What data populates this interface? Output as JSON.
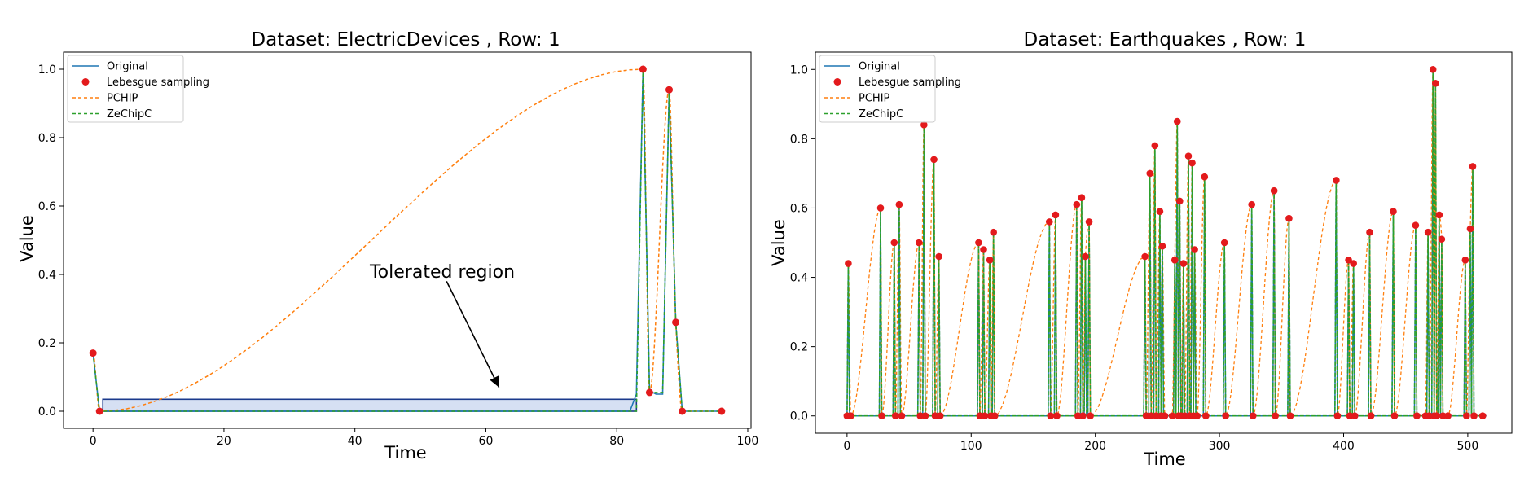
{
  "chart_data": [
    {
      "type": "line",
      "title": "Dataset: ElectricDevices , Row: 1",
      "xlabel": "Time",
      "ylabel": "Value",
      "xlim": [
        -4.5,
        100.5
      ],
      "ylim": [
        -0.05,
        1.05
      ],
      "xticks": [
        0,
        20,
        40,
        60,
        80,
        100
      ],
      "yticks": [
        0.0,
        0.2,
        0.4,
        0.6,
        0.8,
        1.0
      ],
      "xtick_labels": [
        "0",
        "20",
        "40",
        "60",
        "80",
        "100"
      ],
      "ytick_labels": [
        "0.0",
        "0.2",
        "0.4",
        "0.6",
        "0.8",
        "1.0"
      ],
      "legend": {
        "placement": "upper-left",
        "entries": [
          {
            "label": "Original",
            "color": "#1f77b4",
            "style": "line"
          },
          {
            "label": "Lebesgue sampling",
            "color": "#e31a1c",
            "style": "marker"
          },
          {
            "label": "PCHIP",
            "color": "#ff7f0e",
            "style": "dashed"
          },
          {
            "label": "ZeChipC",
            "color": "#2ca02c",
            "style": "dashed"
          }
        ]
      },
      "annotation": {
        "text": "Tolerated region",
        "region": {
          "x0": 1.5,
          "x1": 83,
          "y0": 0.0,
          "y1": 0.035
        },
        "arrow_from": [
          54,
          0.38
        ],
        "arrow_to": [
          62,
          0.07
        ]
      },
      "series": [
        {
          "name": "Original",
          "color": "#1f77b4",
          "x": [
            0,
            1,
            2,
            82,
            83,
            84,
            85,
            86,
            87,
            88,
            89,
            90,
            91,
            96
          ],
          "y": [
            0.17,
            0.0,
            0.0,
            0.0,
            0.05,
            1.0,
            0.06,
            0.05,
            0.05,
            0.94,
            0.26,
            0.0,
            0.0,
            0.0
          ]
        },
        {
          "name": "Lebesgue sampling",
          "color": "#e31a1c",
          "x": [
            0,
            1,
            84,
            85,
            88,
            89,
            90,
            96
          ],
          "y": [
            0.17,
            0.0,
            1.0,
            0.055,
            0.94,
            0.26,
            0.0,
            0.0
          ]
        },
        {
          "name": "PCHIP",
          "color": "#ff7f0e",
          "x": [
            0,
            1,
            84,
            85,
            88,
            89,
            90,
            96
          ],
          "y": [
            0.17,
            0.0,
            1.0,
            0.055,
            0.94,
            0.26,
            0.0,
            0.0
          ]
        },
        {
          "name": "ZeChipC",
          "color": "#2ca02c",
          "x": [
            0,
            1,
            83,
            84,
            85,
            87,
            88,
            89,
            90,
            96
          ],
          "y": [
            0.17,
            0.0,
            0.0,
            1.0,
            0.055,
            0.055,
            0.94,
            0.26,
            0.0,
            0.0
          ]
        }
      ]
    },
    {
      "type": "line",
      "title": "Dataset: Earthquakes , Row: 1",
      "xlabel": "Time",
      "ylabel": "Value",
      "xlim": [
        -25.5,
        535.5
      ],
      "ylim": [
        -0.05,
        1.05
      ],
      "xticks": [
        0,
        100,
        200,
        300,
        400,
        500
      ],
      "yticks": [
        0.0,
        0.2,
        0.4,
        0.6,
        0.8,
        1.0
      ],
      "xtick_labels": [
        "0",
        "100",
        "200",
        "300",
        "400",
        "500"
      ],
      "ytick_labels": [
        "0.0",
        "0.2",
        "0.4",
        "0.6",
        "0.8",
        "1.0"
      ],
      "legend": {
        "placement": "upper-left",
        "entries": [
          {
            "label": "Original",
            "color": "#1f77b4",
            "style": "line"
          },
          {
            "label": "Lebesgue sampling",
            "color": "#e31a1c",
            "style": "marker"
          },
          {
            "label": "PCHIP",
            "color": "#ff7f0e",
            "style": "dashed"
          },
          {
            "label": "ZeChipC",
            "color": "#2ca02c",
            "style": "dashed"
          }
        ]
      },
      "spikes": [
        {
          "x": 1,
          "y": 0.44
        },
        {
          "x": 27,
          "y": 0.6
        },
        {
          "x": 38,
          "y": 0.5
        },
        {
          "x": 42,
          "y": 0.61
        },
        {
          "x": 58,
          "y": 0.5
        },
        {
          "x": 62,
          "y": 0.84
        },
        {
          "x": 70,
          "y": 0.74
        },
        {
          "x": 74,
          "y": 0.46
        },
        {
          "x": 106,
          "y": 0.5
        },
        {
          "x": 110,
          "y": 0.48
        },
        {
          "x": 115,
          "y": 0.45
        },
        {
          "x": 118,
          "y": 0.53
        },
        {
          "x": 163,
          "y": 0.56
        },
        {
          "x": 168,
          "y": 0.58
        },
        {
          "x": 185,
          "y": 0.61
        },
        {
          "x": 189,
          "y": 0.63
        },
        {
          "x": 192,
          "y": 0.46
        },
        {
          "x": 195,
          "y": 0.56
        },
        {
          "x": 240,
          "y": 0.46
        },
        {
          "x": 244,
          "y": 0.7
        },
        {
          "x": 248,
          "y": 0.78
        },
        {
          "x": 252,
          "y": 0.59
        },
        {
          "x": 254,
          "y": 0.49
        },
        {
          "x": 264,
          "y": 0.45
        },
        {
          "x": 266,
          "y": 0.85
        },
        {
          "x": 268,
          "y": 0.62
        },
        {
          "x": 271,
          "y": 0.44
        },
        {
          "x": 275,
          "y": 0.75
        },
        {
          "x": 278,
          "y": 0.73
        },
        {
          "x": 280,
          "y": 0.48
        },
        {
          "x": 288,
          "y": 0.69
        },
        {
          "x": 304,
          "y": 0.5
        },
        {
          "x": 326,
          "y": 0.61
        },
        {
          "x": 344,
          "y": 0.65
        },
        {
          "x": 356,
          "y": 0.57
        },
        {
          "x": 394,
          "y": 0.68
        },
        {
          "x": 404,
          "y": 0.45
        },
        {
          "x": 408,
          "y": 0.44
        },
        {
          "x": 421,
          "y": 0.53
        },
        {
          "x": 440,
          "y": 0.59
        },
        {
          "x": 458,
          "y": 0.55
        },
        {
          "x": 468,
          "y": 0.53
        },
        {
          "x": 472,
          "y": 1.0
        },
        {
          "x": 474,
          "y": 0.96
        },
        {
          "x": 477,
          "y": 0.58
        },
        {
          "x": 479,
          "y": 0.51
        },
        {
          "x": 498,
          "y": 0.45
        },
        {
          "x": 502,
          "y": 0.54
        },
        {
          "x": 504,
          "y": 0.72
        }
      ],
      "zeros": [
        0,
        3,
        28,
        39,
        44,
        59,
        63,
        71,
        75,
        107,
        111,
        116,
        119,
        164,
        169,
        186,
        190,
        196,
        241,
        245,
        249,
        253,
        256,
        262,
        267,
        269,
        272,
        276,
        279,
        282,
        289,
        305,
        327,
        345,
        357,
        395,
        405,
        409,
        422,
        441,
        459,
        466,
        469,
        473,
        475,
        480,
        484,
        499,
        505,
        512
      ]
    }
  ]
}
